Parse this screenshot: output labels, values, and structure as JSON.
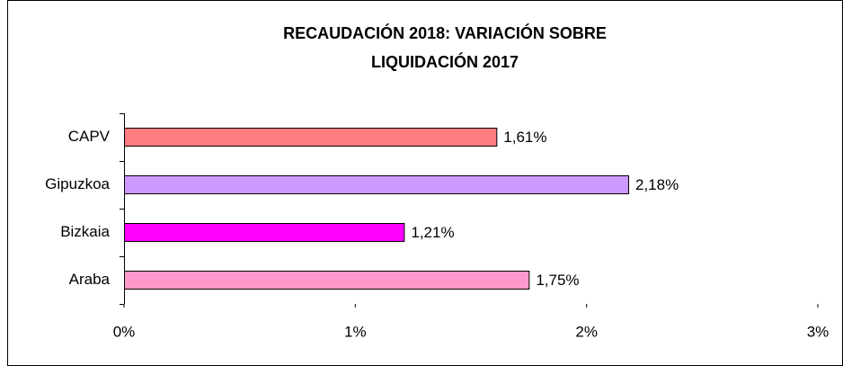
{
  "chart_data": {
    "type": "hbar",
    "title": [
      "RECAUDACIÓN 2018: VARIACIÓN SOBRE",
      "LIQUIDACIÓN 2017"
    ],
    "categories": [
      "CAPV",
      "Gipuzkoa",
      "Bizkaia",
      "Araba"
    ],
    "values": [
      1.61,
      2.18,
      1.21,
      1.75
    ],
    "value_labels": [
      "1,61%",
      "2,18%",
      "1,21%",
      "1,75%"
    ],
    "colors": [
      "#ff7c80",
      "#cc99ff",
      "#ff00ff",
      "#ff99cc"
    ],
    "xlim": [
      0,
      3
    ],
    "xticks": [
      {
        "value": 0,
        "label": "0%"
      },
      {
        "value": 1,
        "label": "1%"
      },
      {
        "value": 2,
        "label": "2%"
      },
      {
        "value": 3,
        "label": "3%"
      }
    ],
    "grid": false
  }
}
